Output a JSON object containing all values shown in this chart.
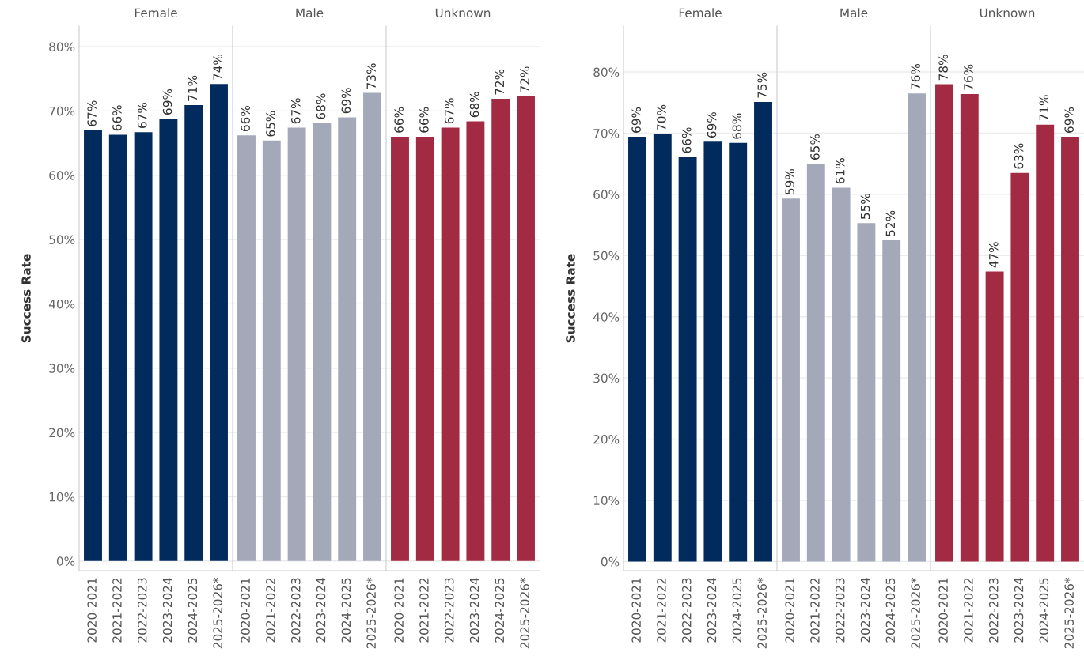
{
  "chart_data": [
    {
      "type": "bar",
      "title": "Female",
      "ylabel": "Success Rate",
      "categories": [
        "2020-2021",
        "2021-2022",
        "2022-2023",
        "2023-2024",
        "2024-2025",
        "2025-2026*"
      ],
      "values": [
        67.0,
        66.3,
        66.7,
        68.8,
        70.9,
        74.2
      ],
      "value_labels": [
        "67%",
        "66%",
        "67%",
        "69%",
        "71%",
        "74%"
      ],
      "color": "#002b5c",
      "ylim": [
        -1.5,
        83.2
      ],
      "yticks": [
        {
          "value": 0,
          "label": "0%"
        },
        {
          "value": 10,
          "label": "10%"
        },
        {
          "value": 20,
          "label": "20%"
        },
        {
          "value": 30,
          "label": "30%"
        },
        {
          "value": 40,
          "label": "40%"
        },
        {
          "value": 50,
          "label": "50%"
        },
        {
          "value": 60,
          "label": "60%"
        },
        {
          "value": 70,
          "label": "70%"
        },
        {
          "value": 80,
          "label": "80%"
        }
      ],
      "grid": "y"
    },
    {
      "type": "bar",
      "title": "Male",
      "categories": [
        "2020-2021",
        "2021-2022",
        "2022-2023",
        "2023-2024",
        "2024-2025",
        "2025-2026*"
      ],
      "values": [
        66.2,
        65.4,
        67.4,
        68.1,
        69.0,
        72.8
      ],
      "value_labels": [
        "66%",
        "65%",
        "67%",
        "68%",
        "69%",
        "73%"
      ],
      "color": "#a3a9b9",
      "ylim": [
        -1.5,
        83.2
      ],
      "yticks": [
        {
          "value": 0,
          "label": null
        },
        {
          "value": 10,
          "label": null
        },
        {
          "value": 20,
          "label": null
        },
        {
          "value": 30,
          "label": null
        },
        {
          "value": 40,
          "label": null
        },
        {
          "value": 50,
          "label": null
        },
        {
          "value": 60,
          "label": null
        },
        {
          "value": 70,
          "label": null
        },
        {
          "value": 80,
          "label": null
        }
      ],
      "grid": "y",
      "tick_labels": "x"
    },
    {
      "type": "bar",
      "title": "Unknown",
      "categories": [
        "2020-2021",
        "2021-2022",
        "2022-2023",
        "2023-2024",
        "2024-2025",
        "2025-2026*"
      ],
      "values": [
        66.0,
        66.0,
        67.4,
        68.4,
        71.9,
        72.3
      ],
      "value_labels": [
        "66%",
        "66%",
        "67%",
        "68%",
        "72%",
        "72%"
      ],
      "color": "#a32a43",
      "ylim": [
        -1.5,
        83.2
      ],
      "yticks": [
        {
          "value": 0,
          "label": null
        },
        {
          "value": 10,
          "label": null
        },
        {
          "value": 20,
          "label": null
        },
        {
          "value": 30,
          "label": null
        },
        {
          "value": 40,
          "label": null
        },
        {
          "value": 50,
          "label": null
        },
        {
          "value": 60,
          "label": null
        },
        {
          "value": 70,
          "label": null
        },
        {
          "value": 80,
          "label": null
        }
      ],
      "grid": "y",
      "tick_labels": "x"
    },
    {
      "type": "bar",
      "title": "Female",
      "ylabel": "Success Rate",
      "categories": [
        "2020-2021",
        "2021-2022",
        "2022-2023",
        "2023-2024",
        "2024-2025",
        "2025-2026*"
      ],
      "values": [
        69.4,
        69.8,
        66.1,
        68.6,
        68.4,
        75.1
      ],
      "value_labels": [
        "69%",
        "70%",
        "66%",
        "69%",
        "68%",
        "75%"
      ],
      "color": "#002b5c",
      "ylim": [
        -1.5,
        87.5
      ],
      "yticks": [
        {
          "value": 0,
          "label": "0%"
        },
        {
          "value": 10,
          "label": "10%"
        },
        {
          "value": 20,
          "label": "20%"
        },
        {
          "value": 30,
          "label": "30%"
        },
        {
          "value": 40,
          "label": "40%"
        },
        {
          "value": 50,
          "label": "50%"
        },
        {
          "value": 60,
          "label": "60%"
        },
        {
          "value": 70,
          "label": "70%"
        },
        {
          "value": 80,
          "label": "80%"
        }
      ],
      "grid": "y"
    },
    {
      "type": "bar",
      "title": "Male",
      "categories": [
        "2020-2021",
        "2021-2022",
        "2022-2023",
        "2023-2024",
        "2024-2025",
        "2025-2026*"
      ],
      "values": [
        59.3,
        65.0,
        61.1,
        55.3,
        52.5,
        76.5
      ],
      "value_labels": [
        "59%",
        "65%",
        "61%",
        "55%",
        "52%",
        "76%"
      ],
      "color": "#a3a9b9",
      "ylim": [
        -1.5,
        87.5
      ],
      "yticks": [
        {
          "value": 0,
          "label": null
        },
        {
          "value": 10,
          "label": null
        },
        {
          "value": 20,
          "label": null
        },
        {
          "value": 30,
          "label": null
        },
        {
          "value": 40,
          "label": null
        },
        {
          "value": 50,
          "label": null
        },
        {
          "value": 60,
          "label": null
        },
        {
          "value": 70,
          "label": null
        },
        {
          "value": 80,
          "label": null
        }
      ],
      "grid": "y",
      "tick_labels": "x"
    },
    {
      "type": "bar",
      "title": "Unknown",
      "categories": [
        "2020-2021",
        "2021-2022",
        "2022-2023",
        "2023-2024",
        "2024-2025",
        "2025-2026*"
      ],
      "values": [
        78.0,
        76.4,
        47.4,
        63.5,
        71.4,
        69.4
      ],
      "value_labels": [
        "78%",
        "76%",
        "47%",
        "63%",
        "71%",
        "69%"
      ],
      "color": "#a32a43",
      "ylim": [
        -1.5,
        87.5
      ],
      "yticks": [
        {
          "value": 0,
          "label": null
        },
        {
          "value": 10,
          "label": null
        },
        {
          "value": 20,
          "label": null
        },
        {
          "value": 30,
          "label": null
        },
        {
          "value": 40,
          "label": null
        },
        {
          "value": 50,
          "label": null
        },
        {
          "value": 60,
          "label": null
        },
        {
          "value": 70,
          "label": null
        },
        {
          "value": 80,
          "label": null
        }
      ],
      "grid": "y",
      "tick_labels": "x"
    }
  ]
}
